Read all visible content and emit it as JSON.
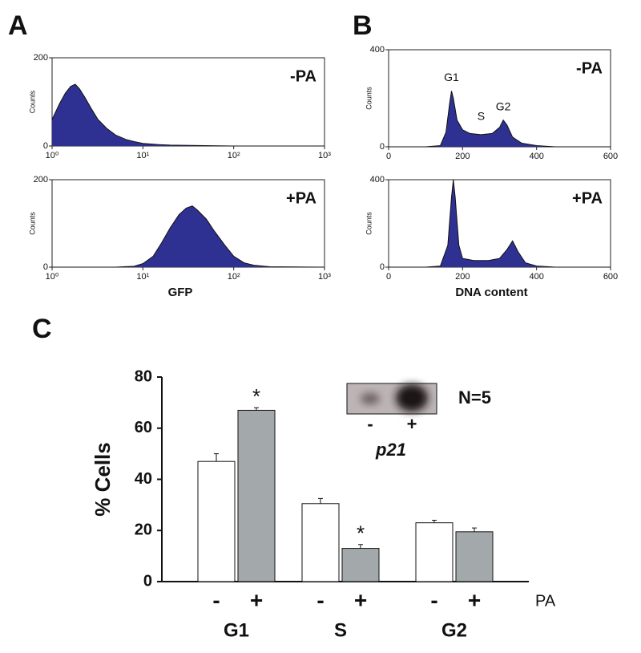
{
  "panels": [
    "A",
    "B",
    "C"
  ],
  "chart_data": [
    {
      "type": "histogram",
      "annotation": "-PA",
      "ylabel": "Counts",
      "xscale": "log",
      "color": "#2e3192",
      "x": [
        1,
        1.2,
        1.4,
        1.6,
        1.8,
        2,
        2.3,
        2.7,
        3.2,
        4,
        5,
        6.5,
        8,
        10,
        15,
        20,
        40,
        100,
        1000
      ],
      "values": [
        60,
        95,
        120,
        135,
        140,
        130,
        110,
        85,
        60,
        40,
        25,
        15,
        10,
        6,
        3,
        2,
        1,
        0,
        0
      ],
      "xlim": [
        1,
        1000
      ],
      "xticks": [
        {
          "value": 1,
          "label": "10⁰"
        },
        {
          "value": 10,
          "label": "10¹"
        },
        {
          "value": 100,
          "label": "10²"
        },
        {
          "value": 1000,
          "label": "10³"
        }
      ],
      "ylim": [
        0,
        200
      ],
      "yticks": [
        0,
        200
      ]
    },
    {
      "type": "histogram",
      "annotation": "+PA",
      "ylabel": "Counts",
      "xlabel": "GFP",
      "xscale": "log",
      "color": "#2e3192",
      "x": [
        1,
        5,
        8,
        10,
        13,
        16,
        20,
        25,
        30,
        35,
        40,
        50,
        60,
        80,
        100,
        130,
        170,
        250,
        1000
      ],
      "values": [
        0,
        0,
        2,
        8,
        25,
        55,
        90,
        120,
        135,
        140,
        130,
        110,
        85,
        50,
        25,
        10,
        4,
        1,
        0
      ],
      "xlim": [
        1,
        1000
      ],
      "xticks": [
        {
          "value": 1,
          "label": "10⁰"
        },
        {
          "value": 10,
          "label": "10¹"
        },
        {
          "value": 100,
          "label": "10²"
        },
        {
          "value": 1000,
          "label": "10³"
        }
      ],
      "ylim": [
        0,
        200
      ],
      "yticks": [
        0,
        200
      ]
    },
    {
      "type": "histogram",
      "annotation": "-PA",
      "ylabel": "Counts",
      "xscale": "linear",
      "color": "#2e3192",
      "x": [
        0,
        100,
        140,
        155,
        165,
        170,
        175,
        185,
        200,
        220,
        250,
        280,
        300,
        310,
        320,
        335,
        360,
        400,
        450,
        600
      ],
      "values": [
        0,
        0,
        5,
        60,
        180,
        230,
        200,
        110,
        70,
        55,
        50,
        55,
        80,
        110,
        90,
        40,
        15,
        5,
        0,
        0
      ],
      "peaks": [
        {
          "label": "G1",
          "x": 170,
          "y": 230
        },
        {
          "label": "S",
          "x": 250,
          "y": 50
        },
        {
          "label": "G2",
          "x": 310,
          "y": 110
        }
      ],
      "xlim": [
        0,
        600
      ],
      "xticks": [
        0,
        200,
        400,
        600
      ],
      "ylim": [
        0,
        400
      ],
      "yticks": [
        0,
        400
      ]
    },
    {
      "type": "histogram",
      "annotation": "+PA",
      "ylabel": "Counts",
      "xlabel": "DNA content",
      "xscale": "linear",
      "color": "#2e3192",
      "x": [
        0,
        100,
        140,
        160,
        170,
        175,
        180,
        190,
        200,
        230,
        270,
        300,
        320,
        335,
        350,
        370,
        400,
        450,
        600
      ],
      "values": [
        0,
        0,
        5,
        100,
        320,
        400,
        320,
        100,
        40,
        30,
        30,
        40,
        80,
        120,
        70,
        20,
        5,
        0,
        0
      ],
      "xlim": [
        0,
        600
      ],
      "xticks": [
        0,
        200,
        400,
        600
      ],
      "ylim": [
        0,
        400
      ],
      "yticks": [
        0,
        400
      ]
    },
    {
      "type": "bar",
      "ylabel": "% Cells",
      "categories": [
        "G1",
        "S",
        "G2"
      ],
      "group_label": "PA",
      "series": [
        {
          "name": "-",
          "color": "#ffffff",
          "values": [
            47,
            30.5,
            23
          ],
          "errors": [
            3,
            2,
            1
          ]
        },
        {
          "name": "+",
          "color": "#a3a9ab",
          "values": [
            67,
            13,
            19.5
          ],
          "errors": [
            1,
            1.5,
            1.5
          ],
          "significant": [
            true,
            true,
            false
          ]
        }
      ],
      "significance_mark": "*",
      "note": "N=5",
      "inset_label": "p21",
      "ylim": [
        0,
        80
      ],
      "yticks": [
        0,
        20,
        40,
        60,
        80
      ]
    }
  ]
}
